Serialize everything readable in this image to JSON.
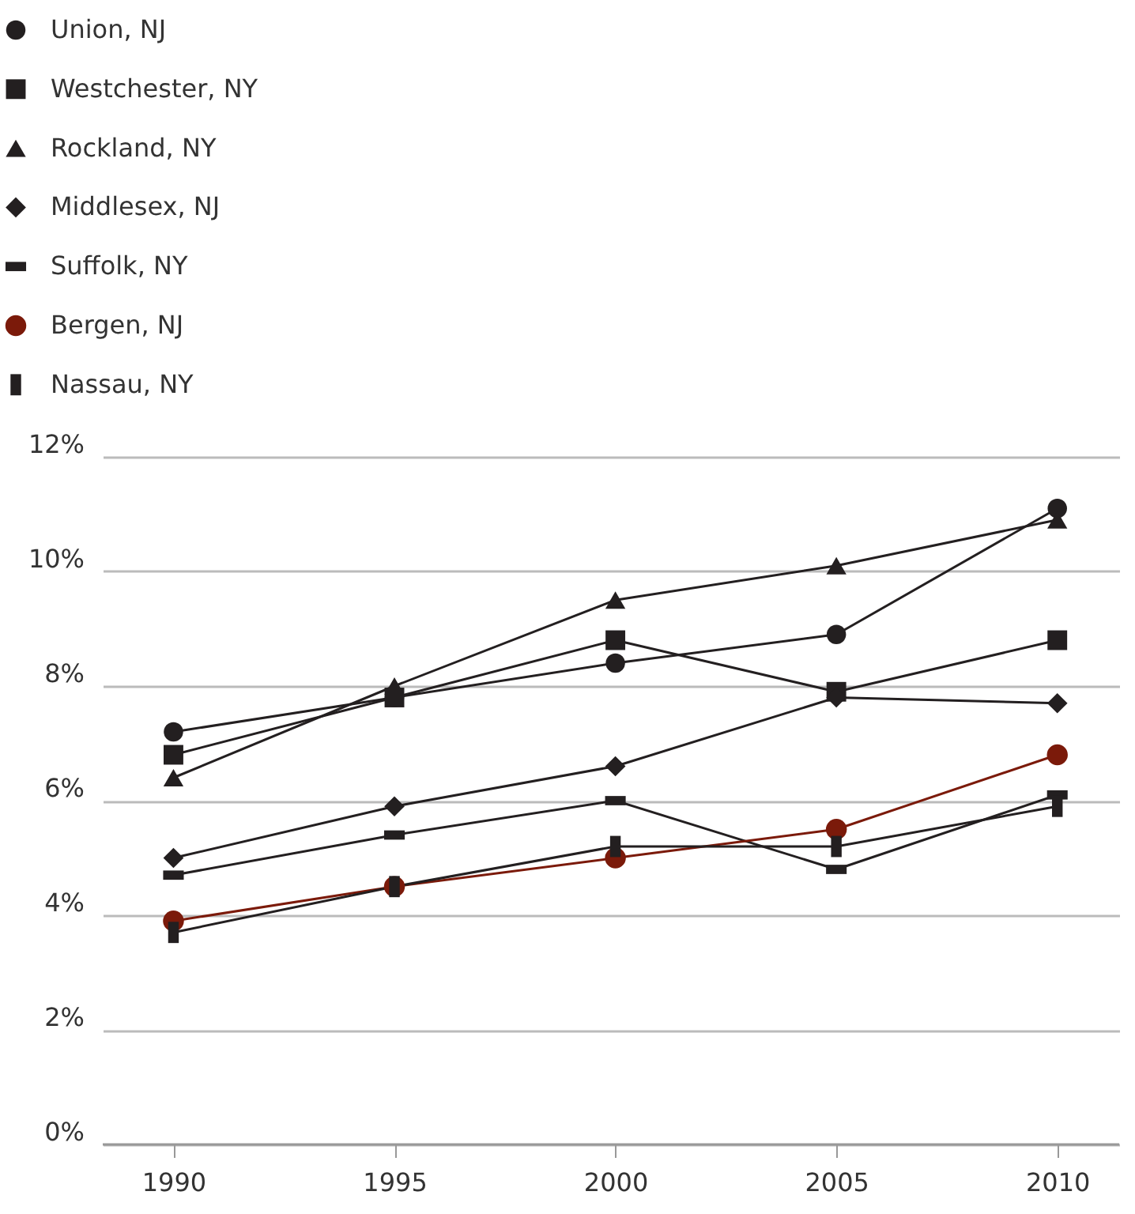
{
  "chart_data": {
    "type": "line",
    "x": [
      1990,
      1995,
      2000,
      2005,
      2010
    ],
    "series": [
      {
        "name": "Union, NJ",
        "color": "#231f20",
        "marker": "circle",
        "values": [
          7.2,
          7.8,
          8.4,
          8.9,
          11.1
        ]
      },
      {
        "name": "Westchester, NY",
        "color": "#231f20",
        "marker": "square",
        "values": [
          6.8,
          7.8,
          8.8,
          7.9,
          8.8
        ]
      },
      {
        "name": "Rockland, NY",
        "color": "#231f20",
        "marker": "triangle",
        "values": [
          6.4,
          8.0,
          9.5,
          10.1,
          10.9
        ]
      },
      {
        "name": "Middlesex, NJ",
        "color": "#231f20",
        "marker": "diamond",
        "values": [
          5.0,
          5.9,
          6.6,
          7.8,
          7.7
        ]
      },
      {
        "name": "Suffolk, NY",
        "color": "#231f20",
        "marker": "rectangle_wide",
        "values": [
          4.7,
          5.4,
          6.0,
          4.8,
          6.1
        ]
      },
      {
        "name": "Bergen, NJ",
        "color": "#7b1a0a",
        "marker": "circle",
        "values": [
          3.9,
          4.5,
          5.0,
          5.5,
          6.8
        ]
      },
      {
        "name": "Nassau, NY",
        "color": "#231f20",
        "marker": "rectangle_tall",
        "values": [
          3.7,
          4.5,
          5.2,
          5.2,
          5.9
        ]
      }
    ],
    "xlim": [
      1988.4,
      2011.4
    ],
    "xticks": [
      1990,
      1995,
      2000,
      2005,
      2010
    ],
    "ylim": [
      0,
      12
    ],
    "yticks": [
      {
        "value": 0,
        "label": "0%"
      },
      {
        "value": 2,
        "label": "2%"
      },
      {
        "value": 4,
        "label": "4%"
      },
      {
        "value": 6,
        "label": "6%"
      },
      {
        "value": 8,
        "label": "8%"
      },
      {
        "value": 10,
        "label": "10%"
      },
      {
        "value": 12,
        "label": "12%"
      }
    ],
    "grid": "y",
    "legend": "top left",
    "line_style": "solid"
  }
}
